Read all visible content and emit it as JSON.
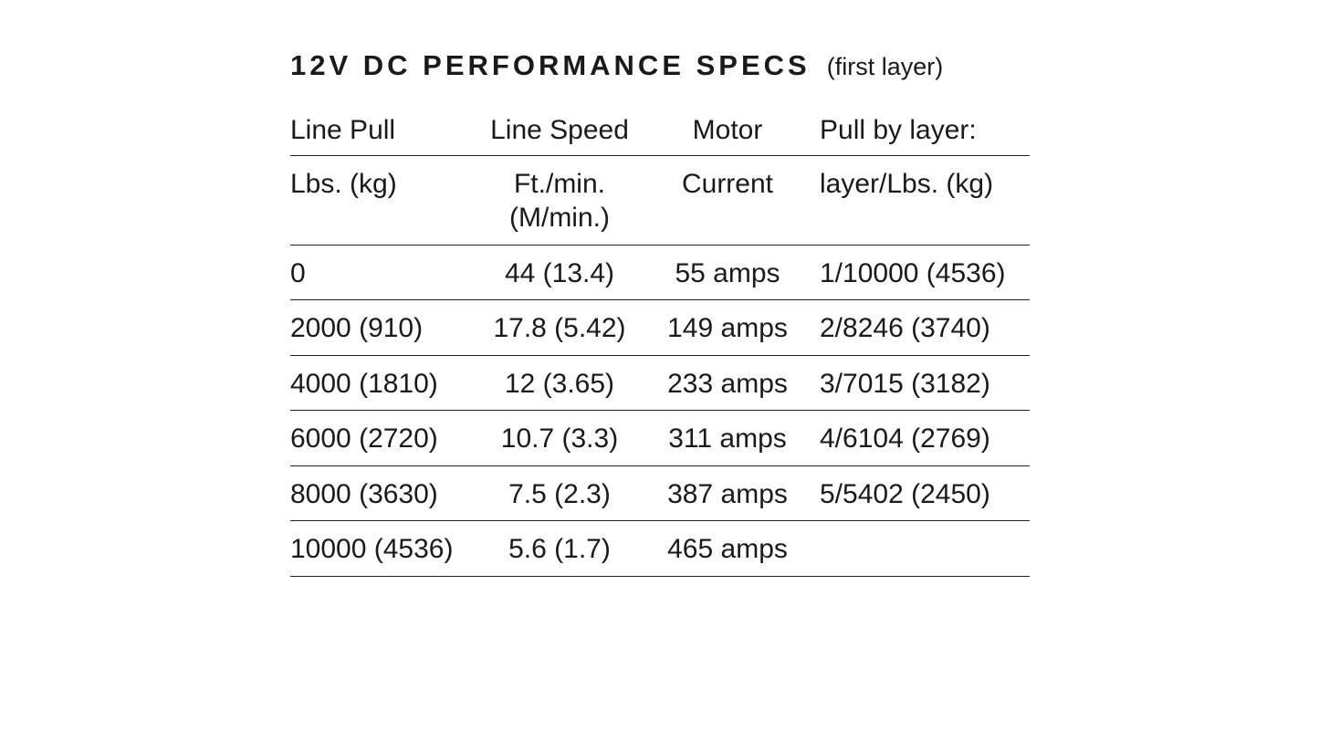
{
  "header": {
    "title": "12V DC PERFORMANCE SPECS",
    "subtitle": "(first layer)"
  },
  "table": {
    "header_rows": [
      [
        "Line Pull",
        "Line Speed",
        "Motor",
        "Pull by layer:"
      ],
      [
        "Lbs. (kg)",
        "Ft./min. (M/min.)",
        "Current",
        "layer/Lbs. (kg)"
      ]
    ],
    "rows": [
      [
        "0",
        "44 (13.4)",
        "55 amps",
        "1/10000 (4536)"
      ],
      [
        "2000 (910)",
        "17.8 (5.42)",
        "149 amps",
        "2/8246 (3740)"
      ],
      [
        "4000 (1810)",
        "12 (3.65)",
        "233 amps",
        "3/7015 (3182)"
      ],
      [
        "6000 (2720)",
        "10.7 (3.3)",
        "311 amps",
        "4/6104 (2769)"
      ],
      [
        "8000 (3630)",
        "7.5 (2.3)",
        "387 amps",
        "5/5402 (2450)"
      ],
      [
        "10000 (4536)",
        "5.6 (1.7)",
        "465 amps"
      ]
    ]
  }
}
